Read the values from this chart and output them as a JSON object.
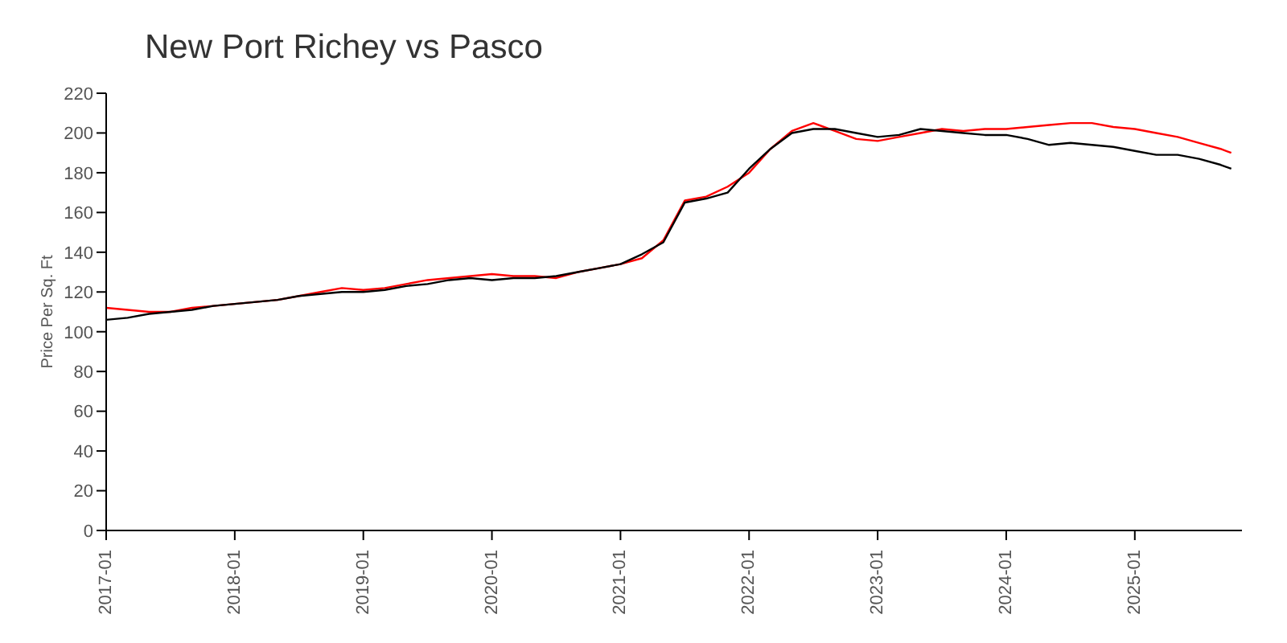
{
  "chart_data": {
    "type": "line",
    "title": "New Port Richey vs Pasco",
    "ylabel": "Price Per Sq. Ft",
    "x": [
      "2017-01",
      "2017-03",
      "2017-05",
      "2017-07",
      "2017-09",
      "2017-11",
      "2018-01",
      "2018-03",
      "2018-05",
      "2018-07",
      "2018-09",
      "2018-11",
      "2019-01",
      "2019-03",
      "2019-05",
      "2019-07",
      "2019-09",
      "2019-11",
      "2020-01",
      "2020-03",
      "2020-05",
      "2020-07",
      "2020-09",
      "2020-11",
      "2021-01",
      "2021-03",
      "2021-05",
      "2021-07",
      "2021-09",
      "2021-11",
      "2022-01",
      "2022-03",
      "2022-05",
      "2022-07",
      "2022-09",
      "2022-11",
      "2023-01",
      "2023-03",
      "2023-05",
      "2023-07",
      "2023-09",
      "2023-11",
      "2024-01",
      "2024-03",
      "2024-05",
      "2024-07",
      "2024-09",
      "2024-11",
      "2025-01",
      "2025-03",
      "2025-05",
      "2025-07",
      "2025-09",
      "2025-10"
    ],
    "series": [
      {
        "color": "#ff0000",
        "values": [
          112,
          111,
          110,
          110,
          112,
          113,
          114,
          115,
          116,
          118,
          120,
          122,
          121,
          122,
          124,
          126,
          127,
          128,
          129,
          128,
          128,
          127,
          130,
          132,
          134,
          137,
          146,
          166,
          168,
          173,
          180,
          192,
          201,
          205,
          201,
          197,
          196,
          198,
          200,
          202,
          201,
          202,
          202,
          203,
          204,
          205,
          205,
          203,
          202,
          200,
          198,
          195,
          192,
          190
        ]
      },
      {
        "color": "#000000",
        "values": [
          106,
          107,
          109,
          110,
          111,
          113,
          114,
          115,
          116,
          118,
          119,
          120,
          120,
          121,
          123,
          124,
          126,
          127,
          126,
          127,
          127,
          128,
          130,
          132,
          134,
          139,
          145,
          165,
          167,
          170,
          182,
          192,
          200,
          202,
          202,
          200,
          198,
          199,
          202,
          201,
          200,
          199,
          199,
          197,
          194,
          195,
          194,
          193,
          191,
          189,
          189,
          187,
          184,
          182
        ]
      }
    ],
    "xlim": [
      "2017-01",
      "2025-11"
    ],
    "xticks": [
      "2017-01",
      "2018-01",
      "2019-01",
      "2020-01",
      "2021-01",
      "2022-01",
      "2023-01",
      "2024-01",
      "2025-01"
    ],
    "ylim": [
      0,
      220
    ],
    "yticks": [
      0,
      20,
      40,
      60,
      80,
      100,
      120,
      140,
      160,
      180,
      200,
      220
    ],
    "grid": false,
    "legend": false,
    "marker": "none",
    "line_style": "solid"
  }
}
